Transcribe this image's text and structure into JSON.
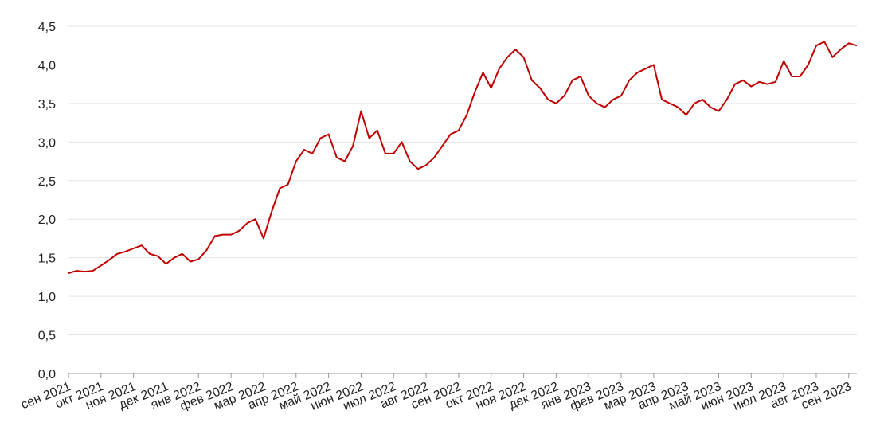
{
  "chart_data": {
    "type": "line",
    "color": "#c00000",
    "grid": true,
    "categories": [
      "сен 2021",
      null,
      null,
      null,
      "окт 2021",
      null,
      null,
      null,
      "ноя 2021",
      null,
      null,
      null,
      "дек 2021",
      null,
      null,
      null,
      "янв 2022",
      null,
      null,
      null,
      "фев 2022",
      null,
      null,
      null,
      "мар 2022",
      null,
      null,
      null,
      "апр 2022",
      null,
      null,
      null,
      "май 2022",
      null,
      null,
      null,
      "июн 2022",
      null,
      null,
      null,
      "июл 2022",
      null,
      null,
      null,
      "авг 2022",
      null,
      null,
      null,
      "сен 2022",
      null,
      null,
      null,
      "окт 2022",
      null,
      null,
      null,
      "ноя 2022",
      null,
      null,
      null,
      "дек 2022",
      null,
      null,
      null,
      "янв 2023",
      null,
      null,
      null,
      "фев 2023",
      null,
      null,
      null,
      "мар 2023",
      null,
      null,
      null,
      "апр 2023",
      null,
      null,
      null,
      "май 2023",
      null,
      null,
      null,
      "июн 2023",
      null,
      null,
      null,
      "июл 2023",
      null,
      null,
      null,
      "авг 2023",
      null,
      null,
      null,
      "сен 2023",
      null
    ],
    "values": [
      1.3,
      1.33,
      1.32,
      1.33,
      1.4,
      1.47,
      1.55,
      1.58,
      1.62,
      1.66,
      1.55,
      1.52,
      1.42,
      1.5,
      1.55,
      1.45,
      1.48,
      1.6,
      1.78,
      1.8,
      1.8,
      1.85,
      1.95,
      2.0,
      1.75,
      2.1,
      2.4,
      2.45,
      2.75,
      2.9,
      2.85,
      3.05,
      3.1,
      2.8,
      2.75,
      2.95,
      3.4,
      3.05,
      3.15,
      2.85,
      2.85,
      3.0,
      2.75,
      2.65,
      2.7,
      2.8,
      2.95,
      3.1,
      3.15,
      3.35,
      3.65,
      3.9,
      3.7,
      3.95,
      4.1,
      4.2,
      4.1,
      3.8,
      3.7,
      3.55,
      3.5,
      3.6,
      3.8,
      3.85,
      3.6,
      3.5,
      3.45,
      3.55,
      3.6,
      3.8,
      3.9,
      3.95,
      4.0,
      3.55,
      3.5,
      3.45,
      3.35,
      3.5,
      3.55,
      3.45,
      3.4,
      3.55,
      3.75,
      3.8,
      3.72,
      3.78,
      3.75,
      3.78,
      4.05,
      3.85,
      3.85,
      4.0,
      4.25,
      4.3,
      4.1,
      4.2,
      4.28,
      4.25
    ],
    "ylim": [
      0,
      4.5
    ],
    "yticks": [
      {
        "value": 0,
        "label": "0,0"
      },
      {
        "value": 0.5,
        "label": "0,5"
      },
      {
        "value": 1,
        "label": "1,0"
      },
      {
        "value": 1.5,
        "label": "1,5"
      },
      {
        "value": 2,
        "label": "2,0"
      },
      {
        "value": 2.5,
        "label": "2,5"
      },
      {
        "value": 3,
        "label": "3,0"
      },
      {
        "value": 3.5,
        "label": "3,5"
      },
      {
        "value": 4,
        "label": "4,0"
      },
      {
        "value": 4.5,
        "label": "4,5"
      }
    ]
  }
}
